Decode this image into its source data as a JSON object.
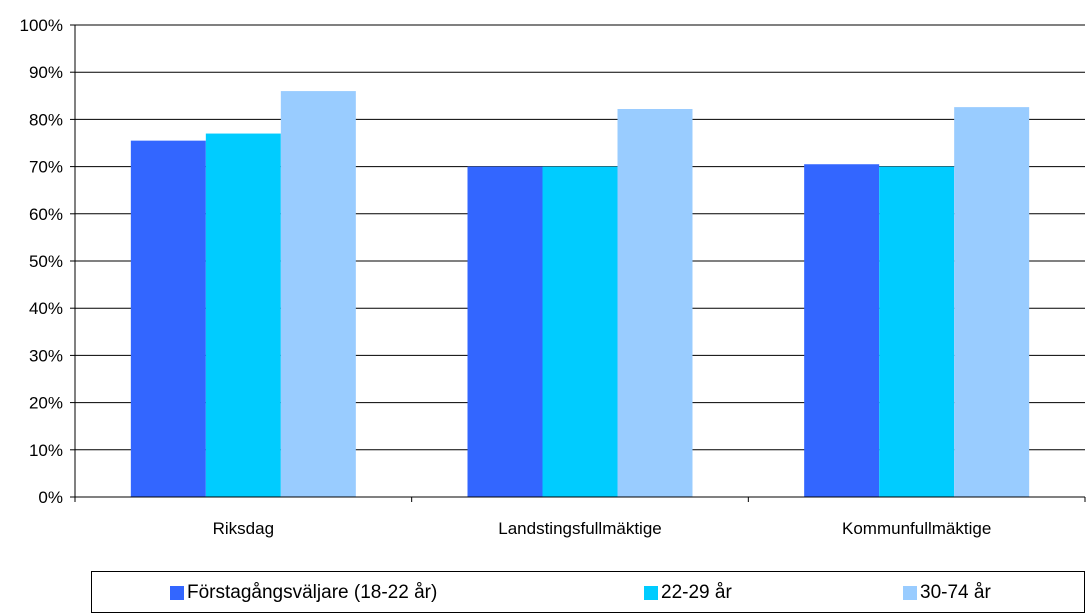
{
  "chart_data": {
    "type": "bar",
    "categories": [
      "Riksdag",
      "Landstingsfullmäktige",
      "Kommunfullmäktige"
    ],
    "series": [
      {
        "name": "Förstagångsväljare (18-22 år)",
        "color": "#3366ff",
        "values": [
          75.5,
          70,
          70.5
        ]
      },
      {
        "name": "22-29 år",
        "color": "#00ccff",
        "values": [
          77,
          70,
          70
        ]
      },
      {
        "name": "30-74 år",
        "color": "#99ccff",
        "values": [
          86,
          82.2,
          82.6
        ]
      }
    ],
    "ylim": [
      0,
      100
    ],
    "yticks": [
      "0%",
      "10%",
      "20%",
      "30%",
      "40%",
      "50%",
      "60%",
      "70%",
      "80%",
      "90%",
      "100%"
    ],
    "grid": true,
    "legend_position": "bottom"
  }
}
